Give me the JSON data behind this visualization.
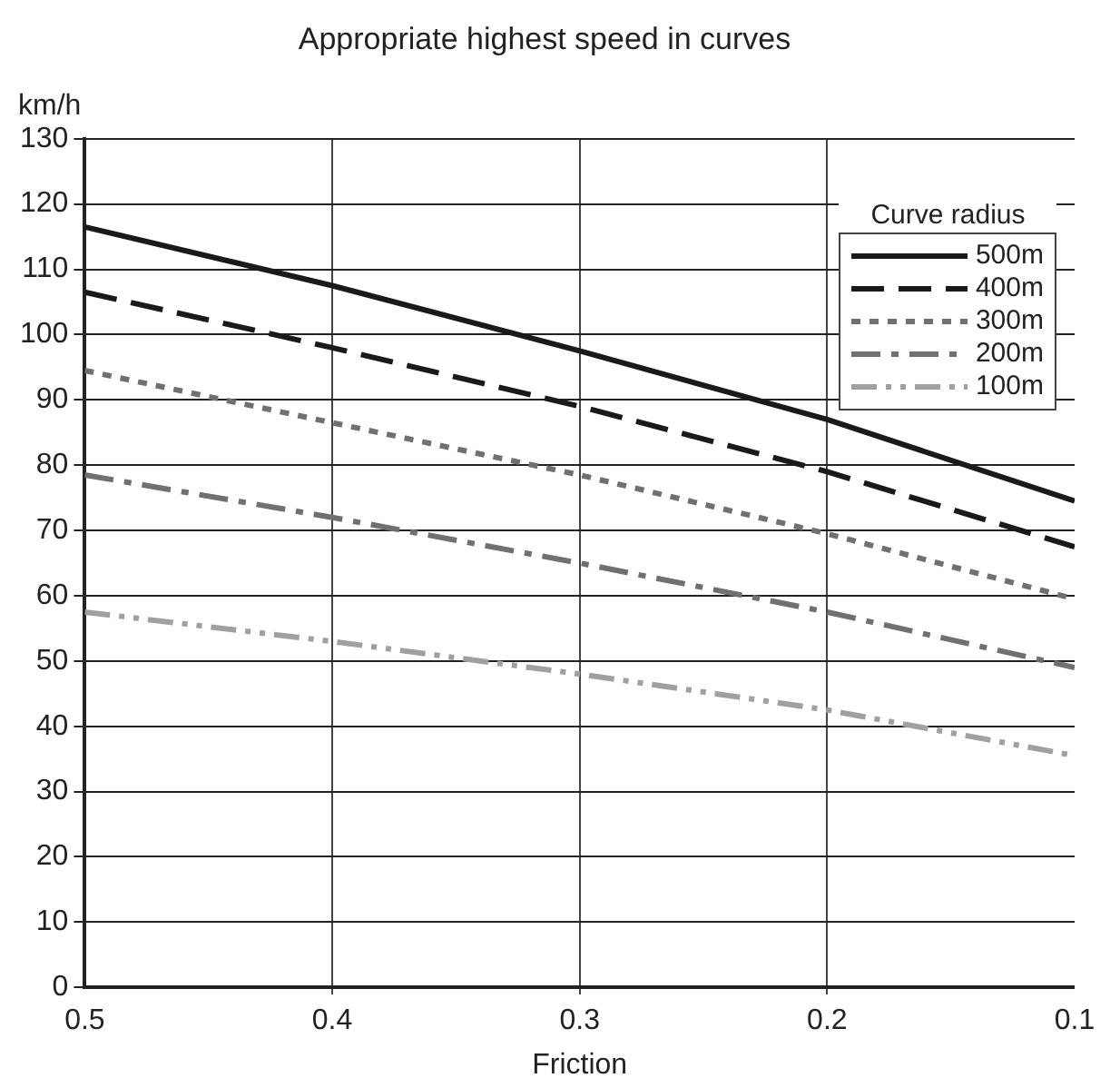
{
  "chart_data": {
    "type": "line",
    "title": "Appropriate highest speed in curves",
    "xlabel": "Friction",
    "ylabel": "km/h",
    "legend_title": "Curve radius",
    "x": [
      0.5,
      0.4,
      0.3,
      0.2,
      0.1
    ],
    "xlim": [
      0.5,
      0.1
    ],
    "xticks": [
      0.5,
      0.4,
      0.3,
      0.2,
      0.1
    ],
    "ylim": [
      0,
      130
    ],
    "yticks": [
      0,
      10,
      20,
      30,
      40,
      50,
      60,
      70,
      80,
      90,
      100,
      110,
      120,
      130
    ],
    "grid": true,
    "legend": "top right",
    "marker": "none",
    "series": [
      {
        "name": "500m",
        "color": "#1a1a1a",
        "line_style": "solid",
        "values": [
          116.5,
          107.5,
          97.5,
          87,
          74.5
        ]
      },
      {
        "name": "400m",
        "color": "#1a1a1a",
        "line_style": "dashed",
        "values": [
          106.5,
          98,
          89,
          79,
          67.5
        ]
      },
      {
        "name": "300m",
        "color": "#707070",
        "line_style": "dotted",
        "values": [
          94.5,
          86.5,
          78.5,
          69.5,
          59.5
        ]
      },
      {
        "name": "200m",
        "color": "#707070",
        "line_style": "dashdot",
        "values": [
          78.5,
          72,
          65,
          57.5,
          49
        ]
      },
      {
        "name": "100m",
        "color": "#a0a0a0",
        "line_style": "dashdotdot",
        "values": [
          57.5,
          53,
          48,
          42.5,
          35.5
        ]
      }
    ]
  }
}
